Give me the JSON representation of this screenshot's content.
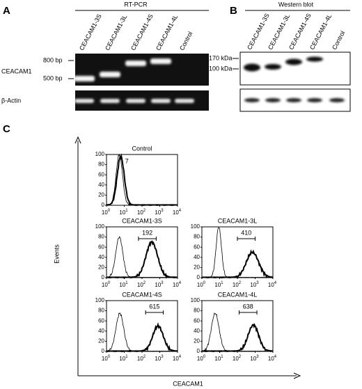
{
  "panel_a": {
    "letter": "A",
    "title": "RT-PCR",
    "lanes": [
      "CEACAM1-3S",
      "CEACAM1-3L",
      "CEACAM1-4S",
      "CEACAM1-4L",
      "Control"
    ],
    "markers": [
      "800 bp",
      "500 bp"
    ],
    "rows": [
      "CEACAM1",
      "β-Actin"
    ]
  },
  "panel_b": {
    "letter": "B",
    "title": "Western blot",
    "lanes": [
      "CEACAM1-3S",
      "CEACAM1-3L",
      "CEACAM1-4S",
      "CEACAM1-4L",
      "Control"
    ],
    "markers": [
      "170 kDa",
      "100 kDa"
    ]
  },
  "panel_c": {
    "letter": "C",
    "y_label": "Events",
    "x_label": "CEACAM1",
    "y_ticks": [
      "0",
      "20",
      "40",
      "60",
      "80",
      "100"
    ],
    "x_ticks": [
      {
        "base": "10",
        "exponent": "0"
      },
      {
        "base": "10",
        "exponent": "1"
      },
      {
        "base": "10",
        "exponent": "2"
      },
      {
        "base": "10",
        "exponent": "3"
      },
      {
        "base": "10",
        "exponent": "4"
      }
    ],
    "histograms": [
      {
        "title": "Control",
        "value": "7"
      },
      {
        "title": "CEACAM1-3S",
        "value": "192"
      },
      {
        "title": "CEACAM1-3L",
        "value": "410"
      },
      {
        "title": "CEACAM1-4S",
        "value": "615"
      },
      {
        "title": "CEACAM1-4L",
        "value": "638"
      }
    ]
  }
}
